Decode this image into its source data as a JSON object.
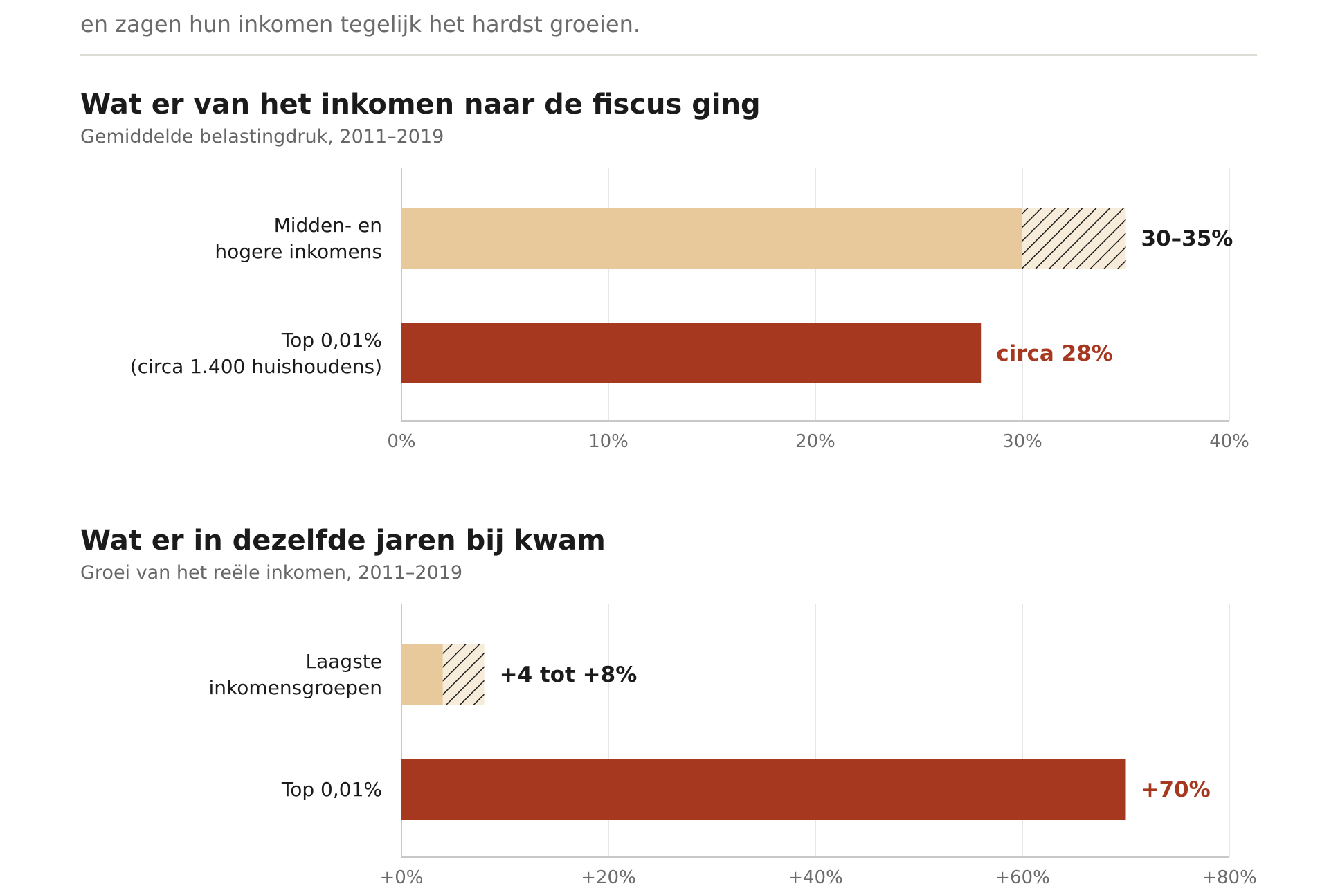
{
  "intro": {
    "line": "en zagen hun inkomen tegelijk het hardst groeien."
  },
  "colors": {
    "light": "#e8c99b",
    "dark": "#a73820",
    "text": "#1b1b1b",
    "grid": "#e6e6e6",
    "axis": "#c8c8c8"
  },
  "chart_data": [
    {
      "type": "bar",
      "orientation": "horizontal",
      "title": "Wat er van het inkomen naar de fiscus ging",
      "subtitle": "Gemiddelde belastingdruk, 2011–2019",
      "xlim": [
        0,
        40
      ],
      "ticks": [
        0,
        10,
        20,
        30,
        40
      ],
      "tick_labels": [
        "0%",
        "10%",
        "20%",
        "30%",
        "40%"
      ],
      "bars": [
        {
          "label_lines": [
            "Midden- en",
            "hogere inkomens"
          ],
          "value": 30,
          "range_end": 35,
          "value_label": "30–35%",
          "color": "#e8c99b",
          "label_color": "#1b1b1b"
        },
        {
          "label_lines": [
            "Top 0,01%",
            "(circa 1.400 huishoudens)"
          ],
          "value": 28,
          "value_label": "circa 28%",
          "color": "#a73820",
          "label_color": "#a73820"
        }
      ]
    },
    {
      "type": "bar",
      "orientation": "horizontal",
      "title": "Wat er in dezelfde jaren bij kwam",
      "subtitle": "Groei van het reële inkomen, 2011–2019",
      "xlim": [
        0,
        80
      ],
      "ticks": [
        0,
        20,
        40,
        60,
        80
      ],
      "tick_labels": [
        "+0%",
        "+20%",
        "+40%",
        "+60%",
        "+80%"
      ],
      "bars": [
        {
          "label_lines": [
            "Laagste",
            "inkomensgroepen"
          ],
          "value": 4,
          "range_end": 8,
          "value_label": "+4 tot +8%",
          "color": "#e8c99b",
          "label_color": "#1b1b1b"
        },
        {
          "label_lines": [
            "Top 0,01%"
          ],
          "value": 70,
          "value_label": "+70%",
          "color": "#a73820",
          "label_color": "#a73820"
        }
      ]
    }
  ]
}
